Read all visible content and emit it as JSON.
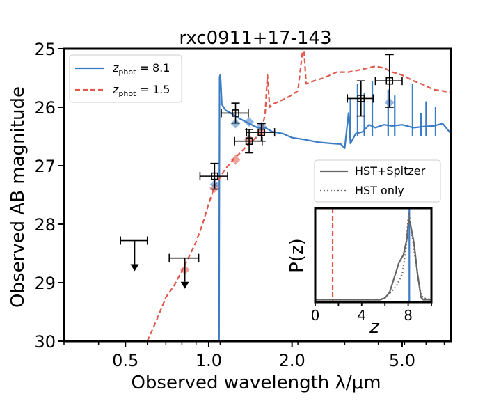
{
  "chart_data": {
    "type": "line",
    "title": "rxc0911+17-143",
    "xlabel": "Observed wavelength λ/μm",
    "ylabel": "Observed AB magnitude",
    "xscale": "log",
    "xlim": [
      0.3,
      7.5
    ],
    "ylim": [
      30,
      25
    ],
    "xticks": [
      {
        "value": 0.5,
        "label": "0.5"
      },
      {
        "value": 1.0,
        "label": "1.0"
      },
      {
        "value": 2.0,
        "label": "2.0"
      },
      {
        "value": 5.0,
        "label": "5.0"
      }
    ],
    "yticks": [
      {
        "value": 25,
        "label": "25"
      },
      {
        "value": 26,
        "label": "26"
      },
      {
        "value": 27,
        "label": "27"
      },
      {
        "value": 28,
        "label": "28"
      },
      {
        "value": 29,
        "label": "29"
      },
      {
        "value": 30,
        "label": "30"
      }
    ],
    "legend": {
      "position": "top-left",
      "entries": [
        {
          "label_main": "z",
          "label_sub": "phot",
          "label_value": " = 8.1",
          "color": "#3a7cc5",
          "style": "solid"
        },
        {
          "label_main": "z",
          "label_sub": "phot",
          "label_value": " = 1.5",
          "color": "#e2574c",
          "style": "dashed"
        }
      ]
    },
    "series": [
      {
        "name": "z_phot = 8.1",
        "color": "#3a7cc5",
        "style": "solid",
        "points": [
          [
            1.09,
            30.0
          ],
          [
            1.095,
            25.48
          ],
          [
            1.1,
            25.45
          ],
          [
            1.105,
            25.55
          ],
          [
            1.115,
            25.95
          ],
          [
            1.15,
            26.05
          ],
          [
            1.2,
            26.1
          ],
          [
            1.3,
            26.2
          ],
          [
            1.4,
            26.28
          ],
          [
            1.5,
            26.35
          ],
          [
            1.6,
            26.35
          ],
          [
            1.7,
            26.42
          ],
          [
            1.85,
            26.45
          ],
          [
            2.0,
            26.52
          ],
          [
            2.2,
            26.55
          ],
          [
            2.5,
            26.6
          ],
          [
            2.8,
            26.62
          ],
          [
            3.0,
            26.63
          ],
          [
            3.1,
            26.7
          ],
          [
            3.2,
            26.1
          ],
          [
            3.25,
            26.62
          ],
          [
            3.4,
            26.45
          ],
          [
            3.6,
            26.42
          ],
          [
            3.8,
            26.3
          ],
          [
            4.0,
            26.35
          ],
          [
            4.3,
            26.3
          ],
          [
            4.6,
            26.32
          ],
          [
            5.0,
            26.3
          ],
          [
            5.5,
            26.35
          ],
          [
            6.0,
            26.33
          ],
          [
            6.5,
            26.32
          ],
          [
            7.0,
            26.28
          ],
          [
            7.5,
            26.45
          ]
        ],
        "spikes": [
          [
            3.25,
            25.85
          ],
          [
            3.45,
            25.6
          ],
          [
            3.65,
            25.75
          ],
          [
            3.9,
            25.55
          ],
          [
            4.45,
            25.7
          ],
          [
            4.7,
            25.8
          ],
          [
            5.45,
            25.6
          ],
          [
            5.85,
            26.1
          ],
          [
            6.1,
            25.9
          ],
          [
            6.6,
            26.0
          ]
        ]
      },
      {
        "name": "z_phot = 1.5",
        "color": "#e2574c",
        "style": "dashed",
        "points": [
          [
            0.6,
            30.0
          ],
          [
            0.62,
            29.85
          ],
          [
            0.66,
            29.55
          ],
          [
            0.7,
            29.25
          ],
          [
            0.75,
            29.05
          ],
          [
            0.8,
            28.8
          ],
          [
            0.85,
            28.55
          ],
          [
            0.9,
            28.3
          ],
          [
            0.95,
            28.0
          ],
          [
            1.0,
            27.65
          ],
          [
            1.05,
            27.35
          ],
          [
            1.1,
            27.2
          ],
          [
            1.15,
            27.05
          ],
          [
            1.2,
            26.95
          ],
          [
            1.25,
            26.85
          ],
          [
            1.3,
            26.78
          ],
          [
            1.4,
            26.62
          ],
          [
            1.5,
            26.5
          ],
          [
            1.55,
            26.45
          ],
          [
            1.6,
            26.1
          ],
          [
            1.63,
            25.45
          ],
          [
            1.66,
            26.0
          ],
          [
            1.7,
            25.95
          ],
          [
            1.8,
            25.9
          ],
          [
            1.95,
            25.82
          ],
          [
            2.1,
            25.72
          ],
          [
            2.2,
            24.9
          ],
          [
            2.25,
            25.6
          ],
          [
            2.4,
            25.55
          ],
          [
            2.6,
            25.5
          ],
          [
            2.9,
            25.4
          ],
          [
            3.2,
            25.4
          ],
          [
            3.6,
            25.35
          ],
          [
            4.0,
            25.3
          ],
          [
            4.3,
            25.33
          ],
          [
            4.6,
            25.4
          ],
          [
            5.0,
            25.45
          ],
          [
            5.5,
            25.55
          ],
          [
            6.0,
            25.62
          ],
          [
            6.5,
            25.7
          ],
          [
            7.0,
            25.72
          ],
          [
            7.5,
            25.75
          ]
        ]
      }
    ],
    "photometry": [
      {
        "x": 1.05,
        "y": 27.18,
        "xerr": 0.12,
        "yerr": 0.22
      },
      {
        "x": 1.25,
        "y": 26.1,
        "xerr": 0.14,
        "yerr": 0.17
      },
      {
        "x": 1.4,
        "y": 26.58,
        "xerr": 0.16,
        "yerr": 0.2
      },
      {
        "x": 1.55,
        "y": 26.43,
        "xerr": 0.18,
        "yerr": 0.15
      },
      {
        "x": 3.55,
        "y": 25.85,
        "xerr": 0.38,
        "yerr": 0.3
      },
      {
        "x": 4.5,
        "y": 25.55,
        "xerr": 0.5,
        "yerr": 0.45
      }
    ],
    "upper_limits": [
      {
        "x": 0.54,
        "y": 28.28,
        "xerr": 0.06
      },
      {
        "x": 0.82,
        "y": 28.58,
        "xerr": 0.1
      }
    ],
    "model_photometry": [
      {
        "x": 0.82,
        "y": 28.78,
        "color": "#e2574c"
      },
      {
        "x": 1.05,
        "y": 27.38,
        "color": "#e2574c"
      },
      {
        "x": 1.25,
        "y": 26.9,
        "color": "#e2574c"
      },
      {
        "x": 1.4,
        "y": 26.55,
        "color": "#e2574c"
      },
      {
        "x": 1.55,
        "y": 26.42,
        "color": "#e2574c"
      },
      {
        "x": 1.05,
        "y": 27.32,
        "color": "#3a7cc5"
      },
      {
        "x": 1.25,
        "y": 26.28,
        "color": "#3a7cc5"
      },
      {
        "x": 1.4,
        "y": 26.25,
        "color": "#3a7cc5"
      },
      {
        "x": 1.55,
        "y": 26.33,
        "color": "#3a7cc5"
      },
      {
        "x": 4.5,
        "y": 25.92,
        "color": "#3a7cc5"
      }
    ],
    "inset": {
      "type": "line",
      "xlabel": "z",
      "ylabel": "P(z)",
      "xlim": [
        0,
        10
      ],
      "ylim": [
        0,
        1.15
      ],
      "xticks": [
        {
          "value": 0,
          "label": "0"
        },
        {
          "value": 4,
          "label": "4"
        },
        {
          "value": 8,
          "label": "8"
        }
      ],
      "legend": [
        {
          "label": "HST+Spitzer",
          "color": "#666666",
          "style": "solid"
        },
        {
          "label": "HST only",
          "color": "#666666",
          "style": "dotted"
        }
      ],
      "vlines": [
        {
          "x": 1.5,
          "color": "#e2574c",
          "style": "dashed"
        },
        {
          "x": 8.1,
          "color": "#3a7cc5",
          "style": "solid"
        }
      ],
      "series": [
        {
          "name": "HST+Spitzer",
          "color": "#666666",
          "style": "solid",
          "points": [
            [
              0,
              0.03
            ],
            [
              5.6,
              0.03
            ],
            [
              6.0,
              0.05
            ],
            [
              6.4,
              0.12
            ],
            [
              6.8,
              0.3
            ],
            [
              7.2,
              0.48
            ],
            [
              7.6,
              0.58
            ],
            [
              7.9,
              0.78
            ],
            [
              8.05,
              1.02
            ],
            [
              8.2,
              0.95
            ],
            [
              8.5,
              0.72
            ],
            [
              8.8,
              0.35
            ],
            [
              9.1,
              0.06
            ],
            [
              9.3,
              0.03
            ],
            [
              10,
              0.03
            ]
          ]
        },
        {
          "name": "HST only",
          "color": "#666666",
          "style": "dotted",
          "points": [
            [
              0,
              0.03
            ],
            [
              5.6,
              0.03
            ],
            [
              6.0,
              0.06
            ],
            [
              6.5,
              0.12
            ],
            [
              7.0,
              0.2
            ],
            [
              7.5,
              0.35
            ],
            [
              7.8,
              0.65
            ],
            [
              8.05,
              1.1
            ],
            [
              8.3,
              0.85
            ],
            [
              8.6,
              0.55
            ],
            [
              8.9,
              0.25
            ],
            [
              9.1,
              0.1
            ],
            [
              9.3,
              0.05
            ],
            [
              10,
              0.03
            ]
          ]
        }
      ]
    }
  }
}
